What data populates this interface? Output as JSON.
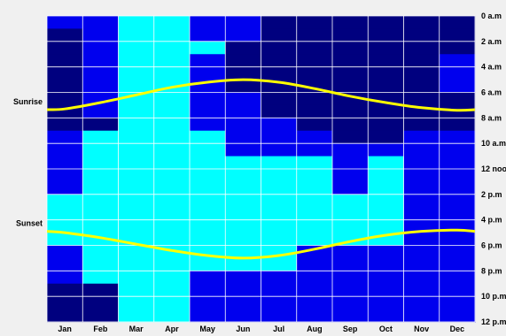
{
  "chart_data": {
    "type": "heatmap",
    "title": "",
    "xlabel": "",
    "ylabel": "",
    "x_categories": [
      "Jan",
      "Feb",
      "Mar",
      "Apr",
      "May",
      "Jun",
      "Jul",
      "Aug",
      "Sep",
      "Oct",
      "Nov",
      "Dec"
    ],
    "y_hour_range": [
      0,
      24
    ],
    "y_tick_labels": [
      "0 a.m",
      "2 a.m",
      "4 a.m",
      "6 a.m",
      "8 a.m",
      "10 a.m",
      "12 noo",
      "2 p.m",
      "4 p.m",
      "6 p.m",
      "8 p.m",
      "10 p.m",
      "12 p.m"
    ],
    "level_colors": [
      "#00007f",
      "#0000ee",
      "#00ffff"
    ],
    "grid": true,
    "hour_levels": [
      [
        1,
        1,
        2,
        2,
        1,
        1,
        0,
        0,
        0,
        0,
        0,
        0
      ],
      [
        0,
        1,
        2,
        2,
        1,
        1,
        0,
        0,
        0,
        0,
        0,
        0
      ],
      [
        0,
        1,
        2,
        2,
        2,
        0,
        0,
        0,
        0,
        0,
        0,
        0
      ],
      [
        0,
        1,
        2,
        2,
        1,
        0,
        0,
        0,
        0,
        0,
        0,
        1
      ],
      [
        0,
        1,
        2,
        2,
        1,
        0,
        0,
        0,
        0,
        0,
        0,
        1
      ],
      [
        0,
        1,
        2,
        2,
        1,
        0,
        0,
        0,
        0,
        0,
        0,
        1
      ],
      [
        0,
        1,
        2,
        2,
        1,
        1,
        0,
        0,
        0,
        0,
        0,
        0
      ],
      [
        0,
        1,
        2,
        2,
        1,
        1,
        0,
        0,
        0,
        0,
        0,
        0
      ],
      [
        0,
        0,
        2,
        2,
        1,
        1,
        1,
        0,
        0,
        0,
        0,
        0
      ],
      [
        1,
        2,
        2,
        2,
        2,
        1,
        1,
        1,
        0,
        0,
        1,
        1
      ],
      [
        1,
        2,
        2,
        2,
        2,
        1,
        1,
        1,
        1,
        1,
        1,
        1
      ],
      [
        1,
        2,
        2,
        2,
        2,
        2,
        2,
        2,
        1,
        2,
        1,
        1
      ],
      [
        1,
        2,
        2,
        2,
        2,
        2,
        2,
        2,
        1,
        2,
        1,
        1
      ],
      [
        1,
        2,
        2,
        2,
        2,
        2,
        2,
        2,
        1,
        2,
        1,
        1
      ],
      [
        2,
        2,
        2,
        2,
        2,
        2,
        2,
        2,
        2,
        2,
        1,
        1
      ],
      [
        2,
        2,
        2,
        2,
        2,
        2,
        2,
        2,
        2,
        2,
        1,
        1
      ],
      [
        2,
        2,
        2,
        2,
        2,
        2,
        2,
        2,
        2,
        2,
        1,
        1
      ],
      [
        2,
        2,
        2,
        2,
        2,
        2,
        2,
        2,
        2,
        2,
        1,
        1
      ],
      [
        1,
        2,
        2,
        2,
        2,
        2,
        2,
        1,
        1,
        1,
        1,
        1
      ],
      [
        1,
        2,
        2,
        2,
        2,
        2,
        2,
        1,
        1,
        1,
        1,
        1
      ],
      [
        1,
        2,
        2,
        2,
        1,
        1,
        1,
        1,
        1,
        1,
        1,
        1
      ],
      [
        0,
        0,
        2,
        2,
        1,
        1,
        1,
        1,
        1,
        1,
        1,
        1
      ],
      [
        0,
        0,
        2,
        2,
        1,
        1,
        1,
        1,
        1,
        1,
        1,
        1
      ],
      [
        0,
        0,
        2,
        2,
        1,
        1,
        1,
        1,
        1,
        1,
        1,
        1
      ]
    ],
    "series": [
      {
        "name": "Sunrise",
        "color": "#ffff00",
        "hours": [
          7.3,
          6.8,
          6.2,
          5.6,
          5.2,
          5.0,
          5.2,
          5.7,
          6.3,
          6.8,
          7.2,
          7.4
        ]
      },
      {
        "name": "Sunset",
        "color": "#ffff00",
        "hours": [
          17.0,
          17.4,
          17.9,
          18.4,
          18.8,
          19.0,
          18.8,
          18.3,
          17.7,
          17.2,
          16.9,
          16.8
        ]
      }
    ]
  }
}
